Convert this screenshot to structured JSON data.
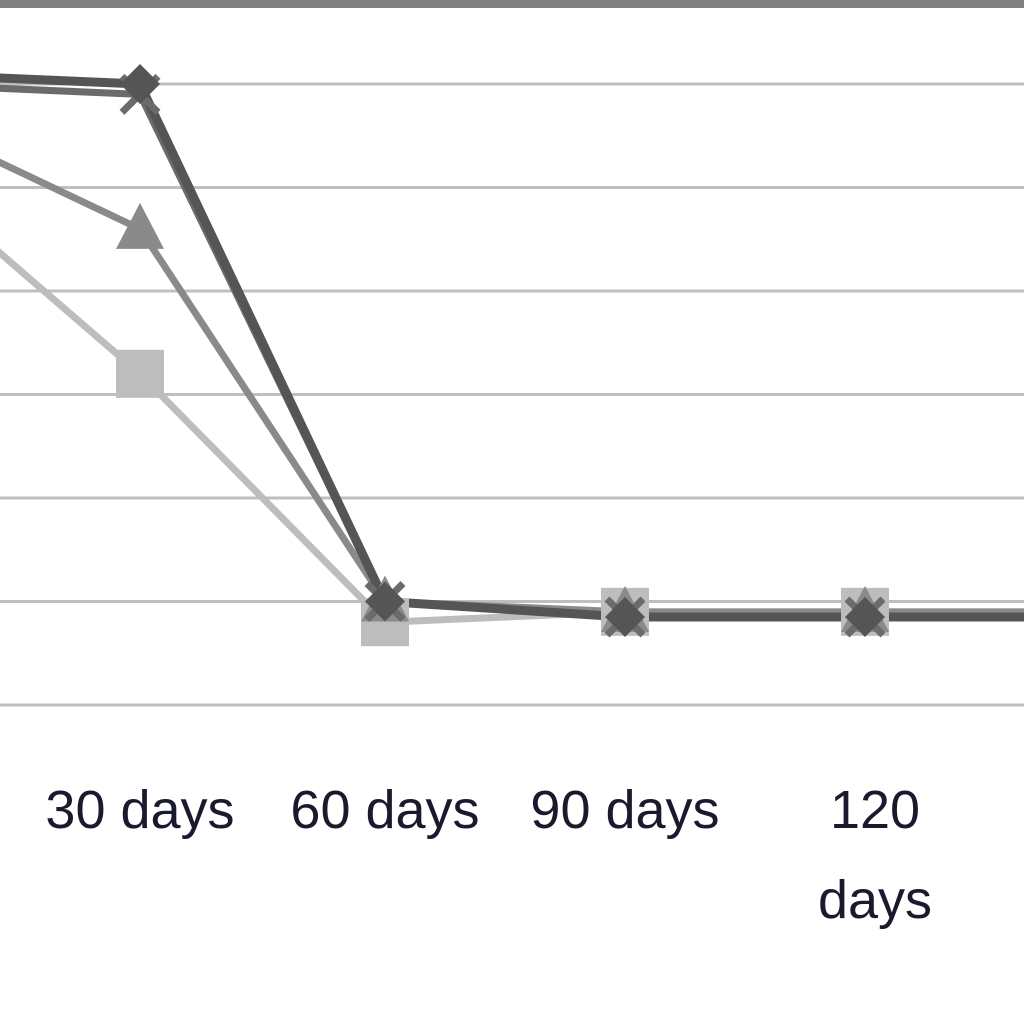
{
  "chart_data": {
    "type": "line",
    "title": "",
    "xlabel": "",
    "ylabel": "",
    "categories": [
      "",
      "30 days",
      "60 days",
      "90 days",
      "120 days"
    ],
    "series": [
      {
        "color": "#555555",
        "marker": "diamond",
        "values": [
          6.1,
          6.0,
          1.0,
          0.85,
          0.85
        ]
      },
      {
        "color": "#8a8a8a",
        "marker": "triangle",
        "values": [
          5.7,
          4.6,
          1.0,
          0.9,
          0.9
        ]
      },
      {
        "color": "#bdbdbd",
        "marker": "square",
        "values": [
          5.2,
          3.2,
          0.8,
          0.9,
          0.9
        ]
      },
      {
        "color": "#6b6b6b",
        "marker": "x",
        "values": [
          6.0,
          5.9,
          1.0,
          0.85,
          0.85
        ]
      }
    ],
    "ylim": [
      0,
      6
    ],
    "grid": true,
    "colors": {
      "frame": "#808080",
      "gridline": "#bfbfbf",
      "tick_label": "#1a1a2e"
    }
  }
}
